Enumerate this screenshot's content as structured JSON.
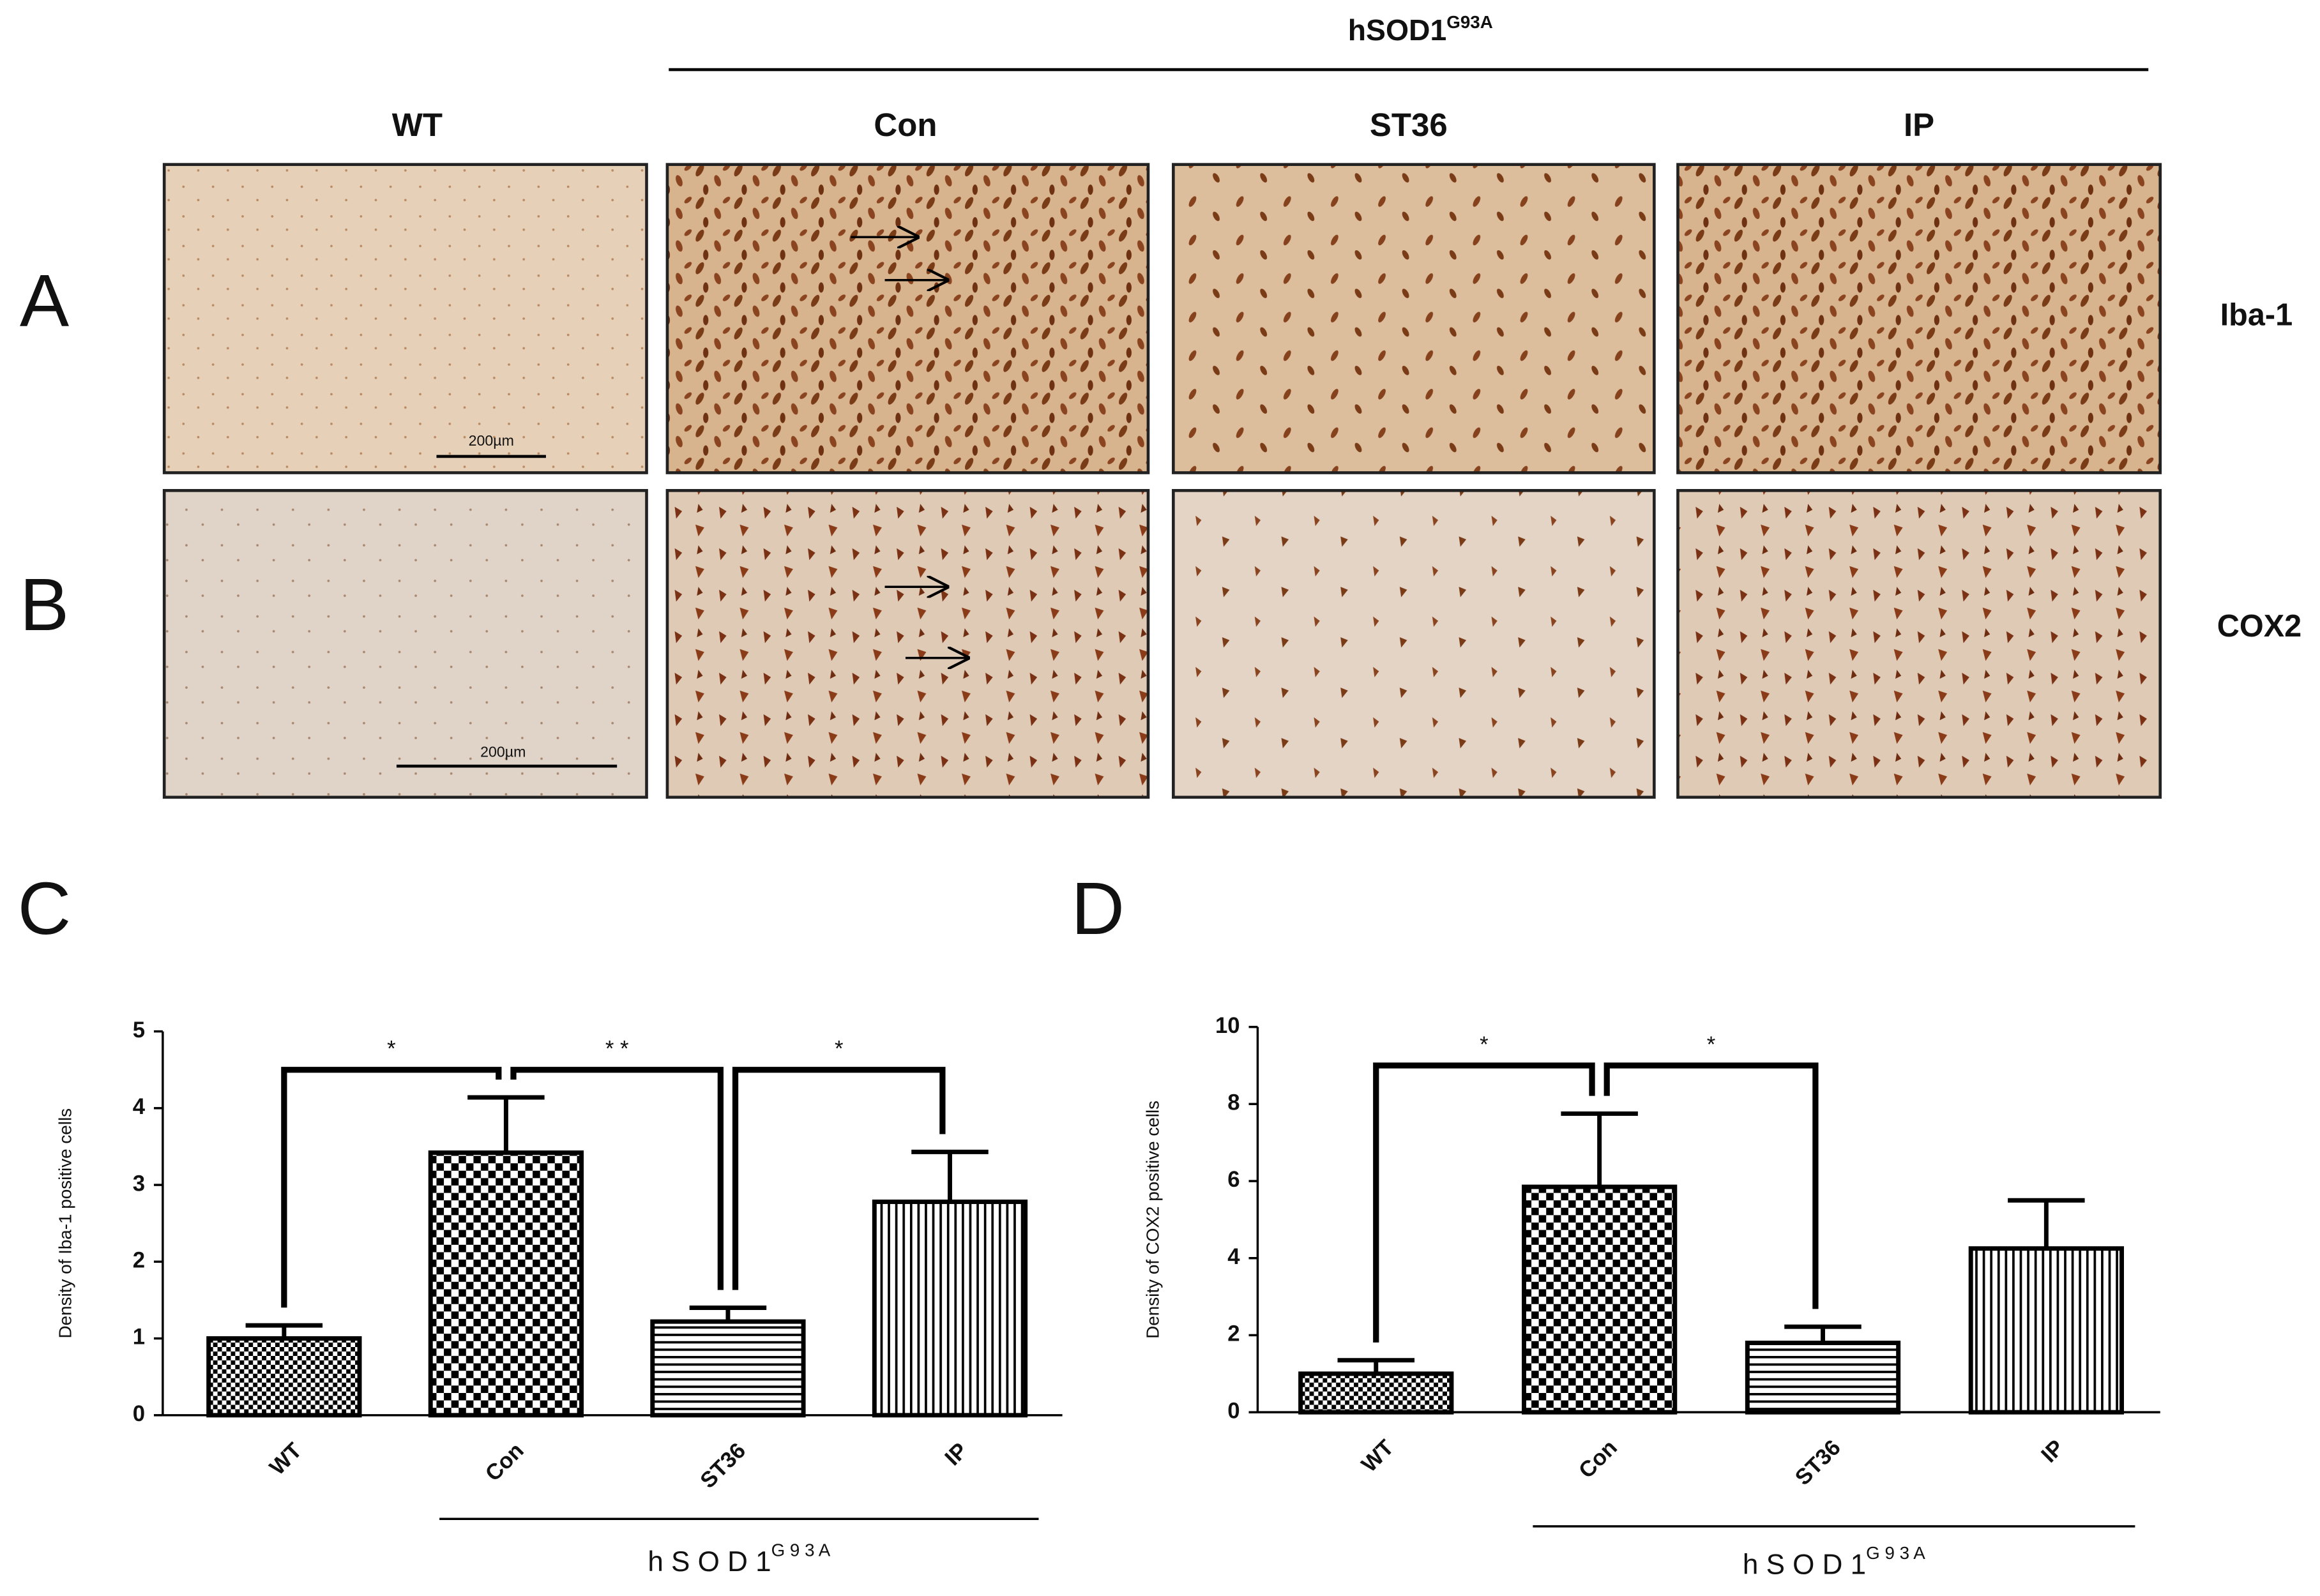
{
  "figure": {
    "header": {
      "text": "hSOD1",
      "sup": "G93A"
    },
    "columns": [
      "WT",
      "Con",
      "ST36",
      "IP"
    ],
    "rows": [
      {
        "panel": "A",
        "marker": "Iba-1",
        "scale_bar": "200µm"
      },
      {
        "panel": "B",
        "marker": "COX2",
        "scale_bar": "200µm"
      }
    ]
  },
  "chart_data": [
    {
      "type": "bar",
      "panel": "C",
      "ylabel": "Density of Iba-1 positive cells",
      "categories": [
        "WT",
        "Con",
        "ST36",
        "IP"
      ],
      "values": [
        1.0,
        3.42,
        1.22,
        2.78
      ],
      "errors": [
        0.17,
        0.72,
        0.18,
        0.65
      ],
      "patterns": [
        "checker-small",
        "checker",
        "hlines",
        "vlines"
      ],
      "ylim": [
        0,
        5
      ],
      "yticks": [
        0,
        1,
        2,
        3,
        4,
        5
      ],
      "annotations": [
        {
          "between": [
            0,
            1
          ],
          "label": "*"
        },
        {
          "between": [
            1,
            2
          ],
          "label": "* *"
        },
        {
          "between": [
            2,
            3
          ],
          "label": "*"
        }
      ],
      "group": {
        "text": "h S O D 1",
        "sup": "G 9 3 A",
        "span": [
          1,
          3
        ]
      }
    },
    {
      "type": "bar",
      "panel": "D",
      "ylabel": "Density of COX2 positive cells",
      "categories": [
        "WT",
        "Con",
        "ST36",
        "IP"
      ],
      "values": [
        1.0,
        5.85,
        1.8,
        4.25
      ],
      "errors": [
        0.35,
        1.9,
        0.42,
        1.25
      ],
      "patterns": [
        "checker-small",
        "checker",
        "hlines",
        "vlines"
      ],
      "ylim": [
        0,
        10
      ],
      "yticks": [
        0,
        2,
        4,
        6,
        8,
        10
      ],
      "annotations": [
        {
          "between": [
            0,
            1
          ],
          "label": "*"
        },
        {
          "between": [
            1,
            2
          ],
          "label": "*"
        }
      ],
      "group": {
        "text": "h S O D 1",
        "sup": "G 9 3 A",
        "span": [
          1,
          3
        ]
      }
    }
  ]
}
